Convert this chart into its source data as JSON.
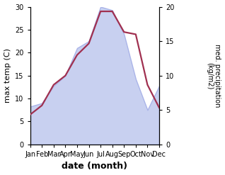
{
  "months": [
    "Jan",
    "Feb",
    "Mar",
    "Apr",
    "May",
    "Jun",
    "Jul",
    "Aug",
    "Sep",
    "Oct",
    "Nov",
    "Dec"
  ],
  "month_x": [
    1,
    2,
    3,
    4,
    5,
    6,
    7,
    8,
    9,
    10,
    11,
    12
  ],
  "temp": [
    6.5,
    8.5,
    13.0,
    15.0,
    19.5,
    22.0,
    29.0,
    29.0,
    24.5,
    24.0,
    13.0,
    8.0
  ],
  "precip": [
    5.5,
    6.0,
    8.5,
    10.0,
    14.0,
    15.0,
    20.0,
    19.5,
    16.0,
    9.5,
    5.0,
    8.5
  ],
  "temp_color": "#a03050",
  "precip_fill_color": "#c8d0f0",
  "precip_edge_color": "#aab4e8",
  "xlabel": "date (month)",
  "ylabel_left": "max temp (C)",
  "ylabel_right": "med. precipitation\n(kg/m2)",
  "ylim_left": [
    0,
    30
  ],
  "ylim_right": [
    0,
    20
  ],
  "yticks_left": [
    0,
    5,
    10,
    15,
    20,
    25,
    30
  ],
  "yticks_right": [
    0,
    5,
    10,
    15,
    20
  ],
  "background_color": "#ffffff",
  "temp_linewidth": 1.6,
  "precip_linewidth": 1.0
}
